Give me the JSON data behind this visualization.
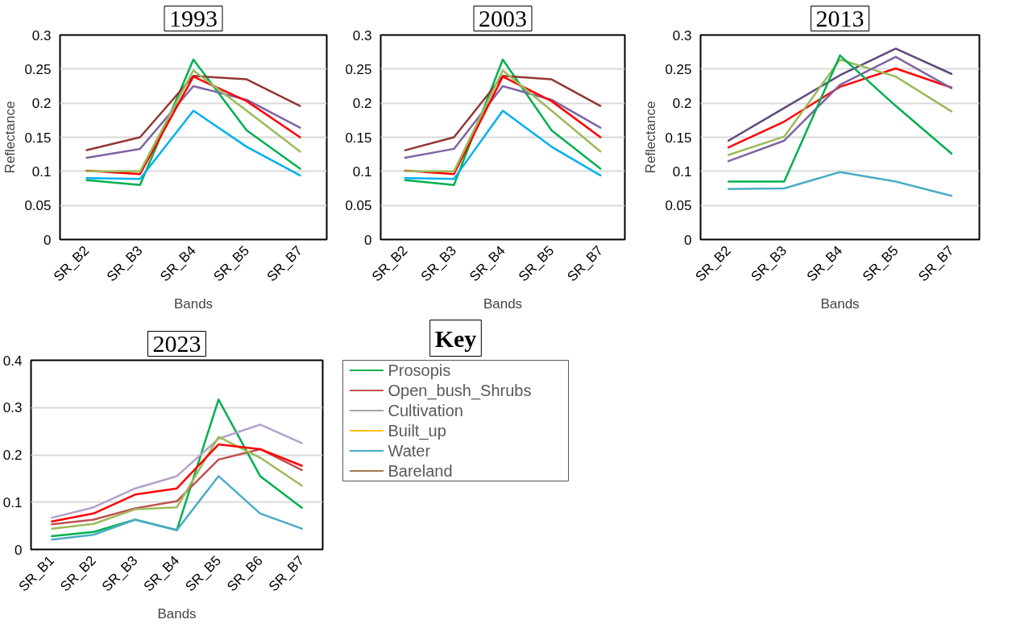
{
  "chart_data": [
    {
      "type": "line",
      "title": "1993",
      "xlabel": "Bands",
      "ylabel": "Reflectance",
      "categories": [
        "SR_B2",
        "SR_B3",
        "SR_B4",
        "SR_B5",
        "SR_B7"
      ],
      "ylim": [
        0,
        0.3
      ],
      "yticks": [
        0,
        0.05,
        0.1,
        0.15,
        0.2,
        0.25,
        0.3
      ],
      "grid": "y",
      "series": [
        {
          "color": "#00b050",
          "values": [
            0.087,
            0.08,
            0.264,
            0.16,
            0.104
          ]
        },
        {
          "color": "#943634",
          "values": [
            0.131,
            0.15,
            0.24,
            0.235,
            0.196
          ]
        },
        {
          "color": "#8064a2",
          "values": [
            0.12,
            0.133,
            0.225,
            0.205,
            0.164
          ]
        },
        {
          "color": "#ff0000",
          "values": [
            0.101,
            0.096,
            0.239,
            0.203,
            0.15
          ]
        },
        {
          "color": "#9bbb59",
          "values": [
            0.1,
            0.1,
            0.248,
            0.189,
            0.129
          ]
        },
        {
          "color": "#00b0f0",
          "values": [
            0.09,
            0.089,
            0.189,
            0.136,
            0.094
          ]
        }
      ]
    },
    {
      "type": "line",
      "title": "2003",
      "xlabel": "Bands",
      "categories": [
        "SR_B2",
        "SR_B3",
        "SR_B4",
        "SR_B5",
        "SR_B7"
      ],
      "ylim": [
        0,
        0.3
      ],
      "yticks": [
        0,
        0.05,
        0.1,
        0.15,
        0.2,
        0.25,
        0.3
      ],
      "grid": "y",
      "series": [
        {
          "color": "#00b050",
          "values": [
            0.087,
            0.08,
            0.264,
            0.16,
            0.104
          ]
        },
        {
          "color": "#943634",
          "values": [
            0.131,
            0.15,
            0.24,
            0.235,
            0.196
          ]
        },
        {
          "color": "#8064a2",
          "values": [
            0.12,
            0.133,
            0.225,
            0.205,
            0.164
          ]
        },
        {
          "color": "#ff0000",
          "values": [
            0.101,
            0.096,
            0.239,
            0.203,
            0.15
          ]
        },
        {
          "color": "#9bbb59",
          "values": [
            0.1,
            0.1,
            0.248,
            0.189,
            0.129
          ]
        },
        {
          "color": "#00b0f0",
          "values": [
            0.09,
            0.089,
            0.189,
            0.136,
            0.094
          ]
        }
      ]
    },
    {
      "type": "line",
      "title": "2013",
      "xlabel": "Bands",
      "ylabel": "Reflectance",
      "categories": [
        "SR_B2",
        "SR_B3",
        "SR_B4",
        "SR_B5",
        "SR_B7"
      ],
      "ylim": [
        0,
        0.3
      ],
      "yticks": [
        0,
        0.05,
        0.1,
        0.15,
        0.2,
        0.25,
        0.3
      ],
      "grid": "y",
      "series": [
        {
          "color": "#5f497a",
          "values": [
            0.145,
            0.193,
            0.241,
            0.28,
            0.243
          ]
        },
        {
          "color": "#ff0000",
          "values": [
            0.135,
            0.173,
            0.224,
            0.251,
            0.223
          ]
        },
        {
          "color": "#9bbb59",
          "values": [
            0.124,
            0.151,
            0.264,
            0.239,
            0.188
          ]
        },
        {
          "color": "#8064a2",
          "values": [
            0.115,
            0.145,
            0.227,
            0.268,
            0.222
          ]
        },
        {
          "color": "#00b050",
          "values": [
            0.085,
            0.085,
            0.27,
            0.196,
            0.126
          ]
        },
        {
          "color": "#4bacc6",
          "values": [
            0.074,
            0.075,
            0.099,
            0.085,
            0.064
          ]
        }
      ]
    },
    {
      "type": "line",
      "title": "2023",
      "xlabel": "Bands",
      "categories": [
        "SR_B1",
        "SR_B2",
        "SR_B3",
        "SR_B4",
        "SR_B5",
        "SR_B6",
        "SR_B7"
      ],
      "ylim": [
        0,
        0.4
      ],
      "yticks": [
        0,
        0.1,
        0.2,
        0.3,
        0.4
      ],
      "grid": "y",
      "series": [
        {
          "color": "#00b050",
          "values": [
            0.028,
            0.037,
            0.063,
            0.041,
            0.317,
            0.155,
            0.088
          ]
        },
        {
          "color": "#b3a2c7",
          "values": [
            0.067,
            0.089,
            0.129,
            0.155,
            0.234,
            0.264,
            0.225
          ]
        },
        {
          "color": "#c0504d",
          "values": [
            0.053,
            0.063,
            0.087,
            0.102,
            0.19,
            0.212,
            0.168
          ]
        },
        {
          "color": "#9bbb59",
          "values": [
            0.044,
            0.054,
            0.085,
            0.089,
            0.238,
            0.194,
            0.135
          ]
        },
        {
          "color": "#ff0000",
          "values": [
            0.059,
            0.076,
            0.116,
            0.129,
            0.222,
            0.212,
            0.177
          ]
        },
        {
          "color": "#4bacc6",
          "values": [
            0.021,
            0.031,
            0.063,
            0.041,
            0.155,
            0.076,
            0.044
          ]
        }
      ]
    },
    {
      "type": "other",
      "title": "Key",
      "series": [
        {
          "name": "Prosopis",
          "color": "#00b050"
        },
        {
          "name": "Open_bush_Shrubs",
          "color": "#c0504d"
        },
        {
          "name": "Cultivation",
          "color": "#a5a5a5"
        },
        {
          "name": "Built_up",
          "color": "#ffc000"
        },
        {
          "name": "Water",
          "color": "#4bacc6"
        },
        {
          "name": "Bareland",
          "color": "#a47d4f"
        }
      ]
    }
  ]
}
